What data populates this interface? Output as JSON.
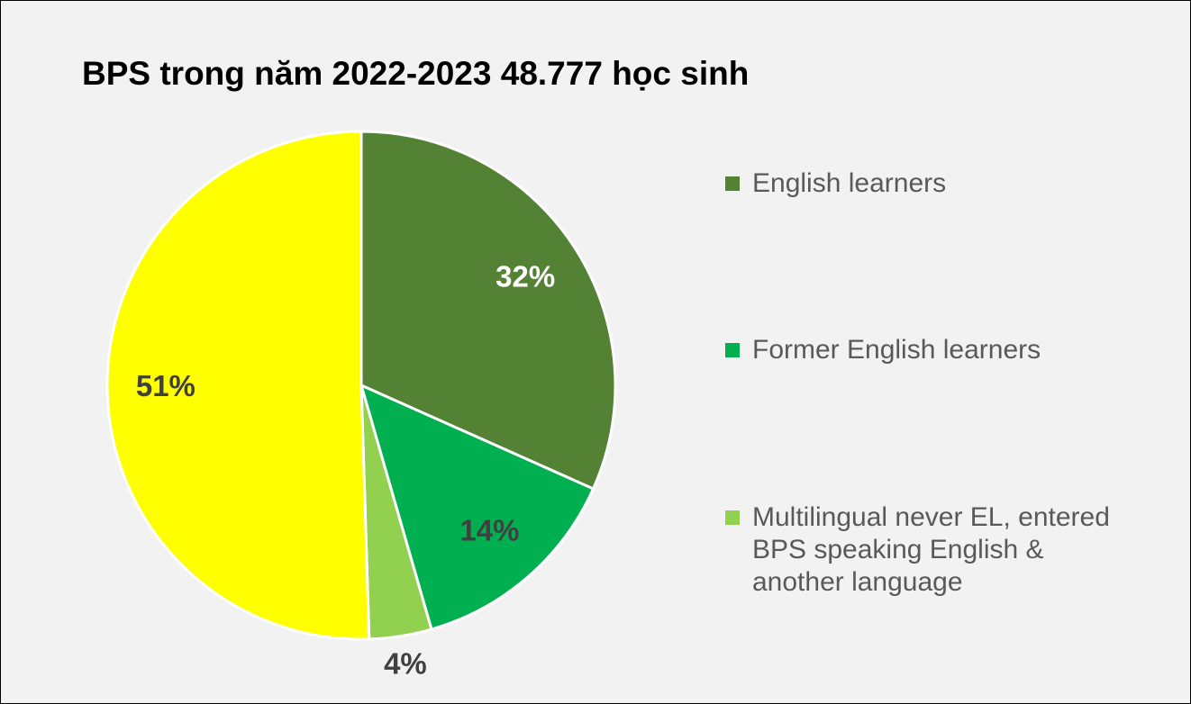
{
  "chart_data": {
    "type": "pie",
    "title": "BPS trong năm 2022-2023 48.777 học sinh",
    "categories": [
      "English learners",
      "Former English learners",
      "Multilingual never EL, entered BPS speaking English & another language",
      null
    ],
    "values": [
      32,
      14,
      4,
      51
    ],
    "value_labels": [
      "32%",
      "14%",
      "4%",
      "51%"
    ],
    "colors": [
      "#548235",
      "#00b050",
      "#92d050",
      "#ffff00"
    ],
    "label_colors": [
      "#ffffff",
      "#404040",
      "#404040",
      "#404040"
    ],
    "legend": "right"
  }
}
